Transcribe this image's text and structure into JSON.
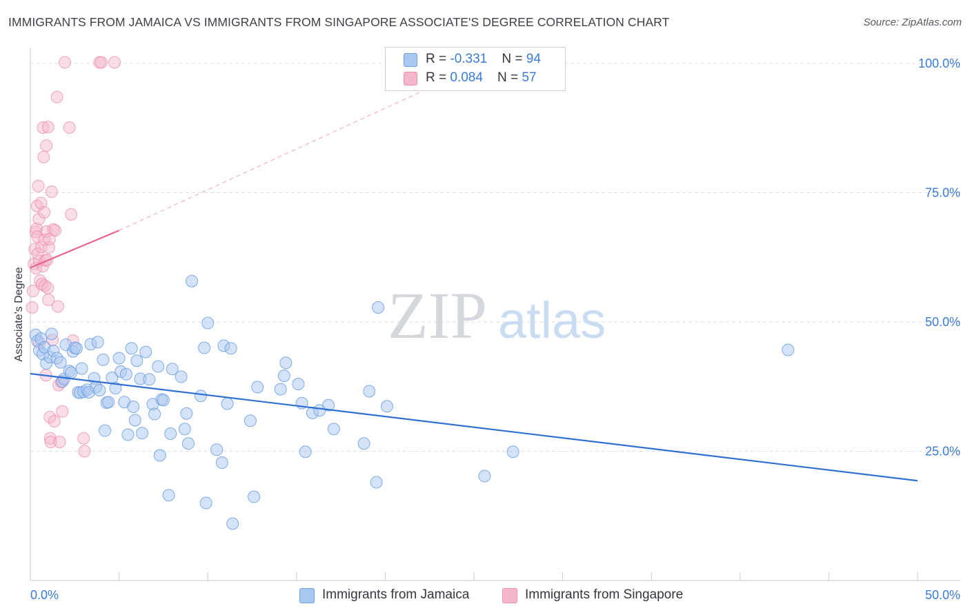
{
  "title": "IMMIGRANTS FROM JAMAICA VS IMMIGRANTS FROM SINGAPORE ASSOCIATE'S DEGREE CORRELATION CHART",
  "source": "Source: ZipAtlas.com",
  "watermark": {
    "zip": "ZIP",
    "atlas": "atlas"
  },
  "colors": {
    "jamaica_fill": "#a9c8f0",
    "jamaica_stroke": "#6d9fe0",
    "jamaica_line": "#2f6fd3",
    "singapore_fill": "#f5b6c9",
    "singapore_stroke": "#ec8fae",
    "singapore_line": "#e8648e",
    "axis_text": "#3a7bd5",
    "grid": "#dedede"
  },
  "legend": {
    "rows": [
      {
        "r_label": "R = ",
        "r_value": "-0.331",
        "n_label": "N = ",
        "n_value": "94"
      },
      {
        "r_label": "R = ",
        "r_value": "0.084",
        "n_label": "N = ",
        "n_value": "57"
      }
    ]
  },
  "bottom_legend": {
    "jamaica": "Immigrants from Jamaica",
    "singapore": "Immigrants from Singapore"
  },
  "chart_data": {
    "type": "scatter",
    "title": "IMMIGRANTS FROM JAMAICA VS IMMIGRANTS FROM SINGAPORE ASSOCIATE'S DEGREE CORRELATION CHART",
    "xlabel": "",
    "ylabel": "Associate's Degree",
    "xlim": [
      0,
      50
    ],
    "ylim": [
      0,
      102
    ],
    "x_tick_labels": [
      "0.0%",
      "50.0%"
    ],
    "y_ticks": [
      25,
      50,
      75,
      100
    ],
    "y_tick_labels": [
      "25.0%",
      "50.0%",
      "75.0%",
      "100.0%"
    ],
    "grid": true,
    "series": [
      {
        "name": "Immigrants from Jamaica",
        "r": -0.331,
        "n": 94,
        "trend": {
          "x0": 0,
          "y0": 40.0,
          "x1": 50,
          "y1": 19.3
        },
        "points": [
          [
            0.3,
            47.5
          ],
          [
            0.4,
            46.3
          ],
          [
            0.5,
            44.5
          ],
          [
            0.6,
            46.8
          ],
          [
            0.7,
            43.8
          ],
          [
            0.8,
            45.1
          ],
          [
            0.9,
            42.0
          ],
          [
            1.1,
            43.2
          ],
          [
            1.2,
            47.7
          ],
          [
            1.3,
            44.4
          ],
          [
            1.5,
            43.0
          ],
          [
            1.7,
            42.2
          ],
          [
            1.8,
            38.5
          ],
          [
            1.9,
            39.0
          ],
          [
            2.0,
            45.6
          ],
          [
            2.2,
            40.5
          ],
          [
            2.3,
            40.2
          ],
          [
            2.4,
            44.3
          ],
          [
            2.5,
            45.0
          ],
          [
            2.6,
            44.9
          ],
          [
            2.7,
            36.4
          ],
          [
            2.8,
            36.3
          ],
          [
            2.9,
            41.0
          ],
          [
            3.0,
            36.5
          ],
          [
            3.2,
            36.9
          ],
          [
            3.3,
            36.4
          ],
          [
            3.4,
            45.7
          ],
          [
            3.6,
            39.1
          ],
          [
            3.7,
            37.4
          ],
          [
            3.8,
            46.1
          ],
          [
            3.9,
            36.8
          ],
          [
            4.1,
            42.7
          ],
          [
            4.2,
            29.0
          ],
          [
            4.3,
            34.4
          ],
          [
            4.4,
            34.5
          ],
          [
            4.6,
            39.2
          ],
          [
            4.8,
            37.2
          ],
          [
            5.0,
            43.0
          ],
          [
            5.1,
            40.4
          ],
          [
            5.3,
            34.5
          ],
          [
            5.4,
            39.9
          ],
          [
            5.5,
            28.2
          ],
          [
            5.7,
            44.9
          ],
          [
            5.8,
            33.6
          ],
          [
            5.9,
            31.0
          ],
          [
            6.0,
            42.5
          ],
          [
            6.2,
            39.0
          ],
          [
            6.3,
            28.5
          ],
          [
            6.5,
            44.2
          ],
          [
            6.7,
            38.9
          ],
          [
            6.9,
            34.1
          ],
          [
            7.0,
            32.2
          ],
          [
            7.2,
            41.4
          ],
          [
            7.3,
            24.2
          ],
          [
            7.4,
            35.0
          ],
          [
            7.5,
            34.9
          ],
          [
            7.8,
            16.5
          ],
          [
            7.9,
            28.4
          ],
          [
            8.0,
            40.9
          ],
          [
            8.5,
            39.4
          ],
          [
            8.7,
            29.3
          ],
          [
            8.8,
            32.3
          ],
          [
            8.9,
            26.5
          ],
          [
            9.1,
            57.9
          ],
          [
            9.6,
            35.7
          ],
          [
            9.8,
            45.0
          ],
          [
            9.9,
            15.0
          ],
          [
            10.0,
            49.8
          ],
          [
            10.5,
            25.3
          ],
          [
            10.8,
            22.8
          ],
          [
            10.9,
            45.4
          ],
          [
            11.1,
            34.2
          ],
          [
            11.3,
            44.9
          ],
          [
            11.4,
            11.0
          ],
          [
            12.4,
            30.9
          ],
          [
            12.6,
            16.2
          ],
          [
            12.8,
            37.4
          ],
          [
            14.1,
            37.0
          ],
          [
            14.3,
            39.6
          ],
          [
            14.4,
            42.1
          ],
          [
            15.1,
            38.0
          ],
          [
            15.3,
            34.3
          ],
          [
            15.5,
            24.9
          ],
          [
            15.9,
            32.4
          ],
          [
            16.3,
            32.9
          ],
          [
            16.8,
            33.9
          ],
          [
            17.1,
            29.3
          ],
          [
            18.8,
            26.5
          ],
          [
            19.1,
            36.6
          ],
          [
            19.5,
            19.0
          ],
          [
            19.6,
            52.8
          ],
          [
            20.1,
            33.7
          ],
          [
            25.6,
            20.2
          ],
          [
            27.2,
            24.9
          ],
          [
            42.7,
            44.6
          ]
        ]
      },
      {
        "name": "Immigrants from Singapore",
        "r": 0.084,
        "n": 57,
        "trend": {
          "x0": 0,
          "y0": 60.5,
          "x1": 5,
          "y1": 67.7
        },
        "trend_extension": {
          "x1": 22,
          "y1": 94.5
        },
        "points": [
          [
            0.1,
            52.8
          ],
          [
            0.15,
            56.0
          ],
          [
            0.2,
            61.2
          ],
          [
            0.25,
            64.1
          ],
          [
            0.3,
            67.4
          ],
          [
            0.32,
            60.4
          ],
          [
            0.35,
            68.0
          ],
          [
            0.38,
            72.4
          ],
          [
            0.4,
            66.5
          ],
          [
            0.42,
            63.2
          ],
          [
            0.45,
            76.3
          ],
          [
            0.48,
            69.9
          ],
          [
            0.5,
            61.8
          ],
          [
            0.5,
            46.0
          ],
          [
            0.55,
            58.0
          ],
          [
            0.6,
            73.0
          ],
          [
            0.62,
            64.5
          ],
          [
            0.65,
            57.3
          ],
          [
            0.7,
            60.8
          ],
          [
            0.72,
            87.6
          ],
          [
            0.75,
            81.9
          ],
          [
            0.78,
            71.2
          ],
          [
            0.8,
            65.9
          ],
          [
            0.82,
            57.0
          ],
          [
            0.85,
            61.9
          ],
          [
            0.88,
            39.7
          ],
          [
            0.9,
            84.1
          ],
          [
            0.92,
            67.5
          ],
          [
            0.95,
            62.0
          ],
          [
            0.98,
            56.6
          ],
          [
            1.0,
            87.7
          ],
          [
            1.02,
            54.3
          ],
          [
            1.05,
            64.4
          ],
          [
            1.08,
            66.0
          ],
          [
            1.1,
            31.6
          ],
          [
            1.12,
            27.5
          ],
          [
            1.15,
            26.8
          ],
          [
            1.2,
            75.2
          ],
          [
            1.25,
            46.5
          ],
          [
            1.3,
            67.9
          ],
          [
            1.35,
            30.8
          ],
          [
            1.4,
            67.7
          ],
          [
            1.5,
            93.5
          ],
          [
            1.55,
            53.0
          ],
          [
            1.6,
            37.8
          ],
          [
            1.65,
            26.8
          ],
          [
            1.75,
            38.4
          ],
          [
            1.8,
            32.7
          ],
          [
            1.95,
            100.2
          ],
          [
            2.2,
            87.6
          ],
          [
            2.3,
            70.8
          ],
          [
            2.4,
            46.4
          ],
          [
            3.0,
            27.5
          ],
          [
            3.05,
            25.0
          ],
          [
            3.9,
            100.2
          ],
          [
            4.0,
            100.2
          ],
          [
            4.75,
            100.2
          ]
        ]
      }
    ]
  }
}
